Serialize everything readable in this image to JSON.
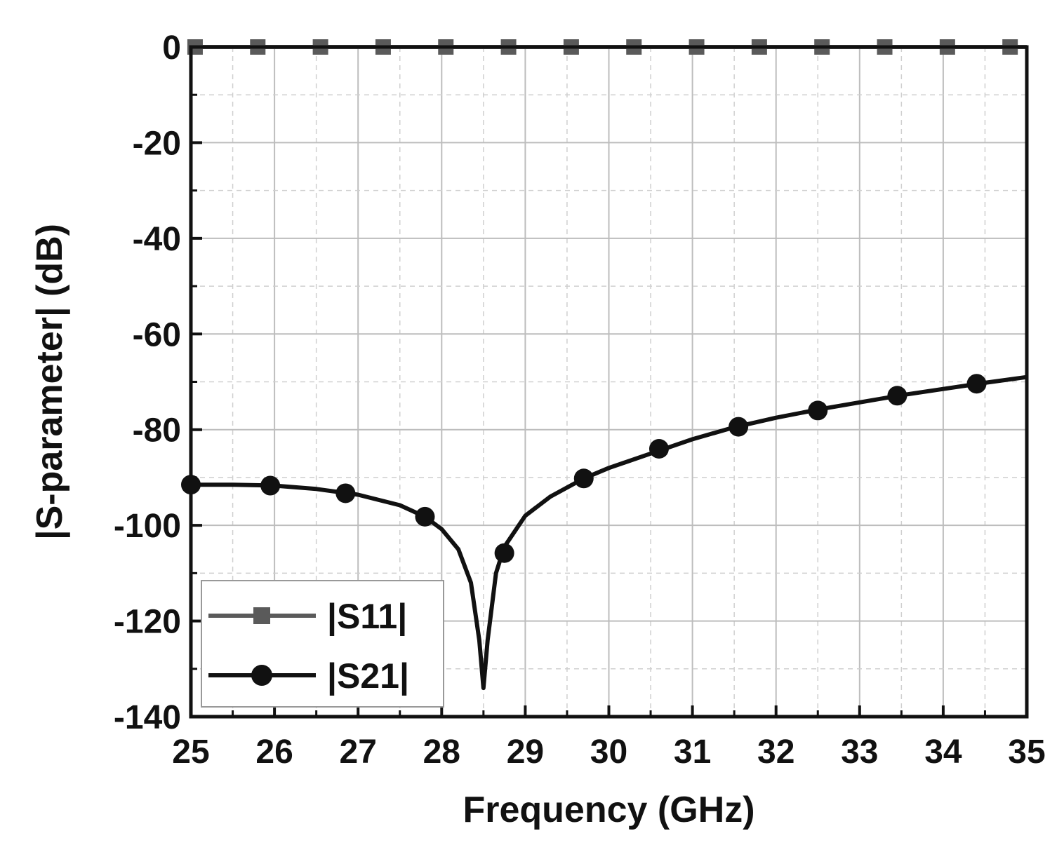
{
  "chart_data": {
    "type": "line",
    "xlabel": "Frequency (GHz)",
    "ylabel": "|S-parameter| (dB)",
    "xlim": [
      25,
      35
    ],
    "ylim": [
      -140,
      0
    ],
    "xticks": [
      "25",
      "26",
      "27",
      "28",
      "29",
      "30",
      "31",
      "32",
      "33",
      "34",
      "35"
    ],
    "yticks": [
      "0",
      "-20",
      "-40",
      "-60",
      "-80",
      "-100",
      "-120",
      "-140"
    ],
    "grid": true,
    "legend_position": "bottom-left",
    "series": [
      {
        "name": "|S11|",
        "color": "#5a5a5a",
        "marker": "square",
        "curve": [
          [
            25,
            0
          ],
          [
            35,
            0
          ]
        ],
        "markers": [
          [
            25.05,
            0
          ],
          [
            25.8,
            0
          ],
          [
            26.55,
            0
          ],
          [
            27.3,
            0
          ],
          [
            28.05,
            0
          ],
          [
            28.8,
            0
          ],
          [
            29.55,
            0
          ],
          [
            30.3,
            0
          ],
          [
            31.05,
            0
          ],
          [
            31.8,
            0
          ],
          [
            32.55,
            0
          ],
          [
            33.3,
            0
          ],
          [
            34.05,
            0
          ],
          [
            34.8,
            0
          ]
        ]
      },
      {
        "name": "|S21|",
        "color": "#111111",
        "marker": "circle",
        "curve": [
          [
            25,
            -91.5
          ],
          [
            25.5,
            -91.5
          ],
          [
            26,
            -91.7
          ],
          [
            26.5,
            -92.4
          ],
          [
            27,
            -93.6
          ],
          [
            27.5,
            -95.8
          ],
          [
            27.8,
            -98.2
          ],
          [
            28,
            -100.8
          ],
          [
            28.2,
            -105
          ],
          [
            28.35,
            -112
          ],
          [
            28.45,
            -124
          ],
          [
            28.5,
            -134
          ],
          [
            28.55,
            -124
          ],
          [
            28.65,
            -110
          ],
          [
            28.75,
            -104.5
          ],
          [
            29,
            -98
          ],
          [
            29.3,
            -94
          ],
          [
            29.7,
            -90.2
          ],
          [
            30,
            -88
          ],
          [
            30.5,
            -85
          ],
          [
            31,
            -82
          ],
          [
            31.5,
            -79.5
          ],
          [
            32,
            -77.5
          ],
          [
            32.5,
            -75.8
          ],
          [
            33,
            -74.3
          ],
          [
            33.5,
            -72.8
          ],
          [
            34,
            -71.5
          ],
          [
            34.5,
            -70.2
          ],
          [
            35,
            -69
          ]
        ],
        "markers": [
          [
            25,
            -91.5
          ],
          [
            25.95,
            -91.7
          ],
          [
            26.85,
            -93.3
          ],
          [
            27.8,
            -98.2
          ],
          [
            28.75,
            -105.8
          ],
          [
            29.7,
            -90.2
          ],
          [
            30.6,
            -84
          ],
          [
            31.55,
            -79.4
          ],
          [
            32.5,
            -76
          ],
          [
            33.45,
            -72.9
          ],
          [
            34.4,
            -70.4
          ]
        ]
      }
    ]
  }
}
